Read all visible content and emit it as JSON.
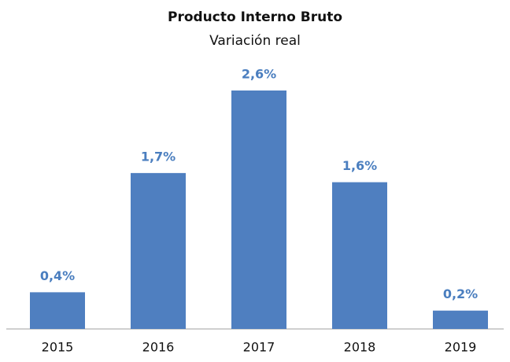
{
  "chart_data": {
    "type": "bar",
    "title": "Producto Interno Bruto",
    "subtitle": "Variación real",
    "categories": [
      "2015",
      "2016",
      "2017",
      "2018",
      "2019"
    ],
    "values": [
      0.4,
      1.7,
      2.6,
      1.6,
      0.2
    ],
    "value_labels": [
      "0,4%",
      "1,7%",
      "2,6%",
      "1,6%",
      "0,2%"
    ],
    "color": "#4f7fc0"
  }
}
